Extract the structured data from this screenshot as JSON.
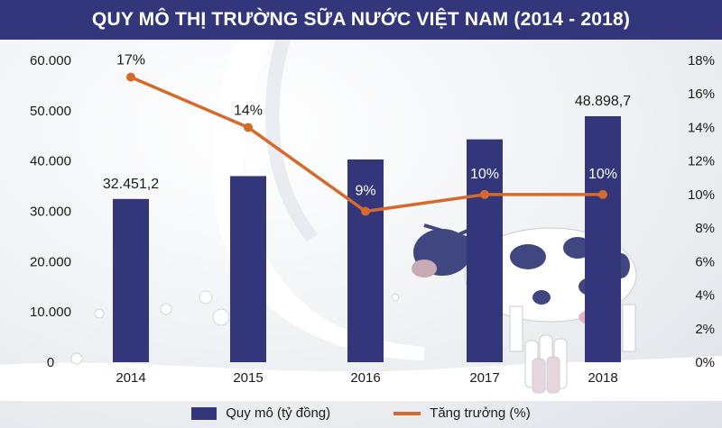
{
  "chart_data": {
    "type": "bar+line",
    "title": "QUY MÔ THỊ TRƯỜNG SỮA NƯỚC VIỆT NAM (2014 - 2018)",
    "categories": [
      "2014",
      "2015",
      "2016",
      "2017",
      "2018"
    ],
    "left_axis": {
      "ylim": [
        0,
        60000
      ],
      "ticks": [
        "0",
        "10.000",
        "20.000",
        "30.000",
        "40.000",
        "50.000",
        "60.000"
      ]
    },
    "right_axis": {
      "ylim": [
        0,
        18
      ],
      "ticks": [
        "0%",
        "2%",
        "4%",
        "6%",
        "8%",
        "10%",
        "12%",
        "14%",
        "16%",
        "18%"
      ]
    },
    "series": [
      {
        "name": "Quy mô (tỷ đồng)",
        "type": "bar",
        "axis": "left",
        "color": "#33367a",
        "values": [
          32451.2,
          37000,
          40300,
          44300,
          48898.7
        ],
        "labels": [
          "32.451,2",
          "",
          "",
          "",
          "48.898,7"
        ]
      },
      {
        "name": "Tăng trưởng (%)",
        "type": "line",
        "axis": "right",
        "color": "#d66a2a",
        "values": [
          17,
          14,
          9,
          10,
          10
        ],
        "labels": [
          "17%",
          "14%",
          "9%",
          "10%",
          "10%"
        ]
      }
    ],
    "legend": {
      "position": "bottom",
      "items": [
        "Quy mô (tỷ đồng)",
        "Tăng trưởng (%)"
      ]
    },
    "grid": false
  },
  "colors": {
    "title_bg": "#33367a",
    "bar": "#33367a",
    "line": "#d66a2a"
  }
}
